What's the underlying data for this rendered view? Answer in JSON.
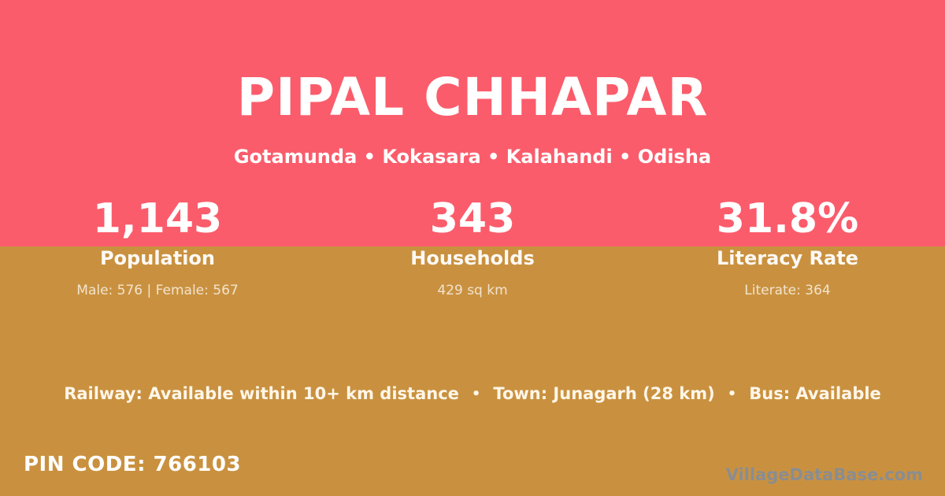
{
  "header": {
    "village_name": "PIPAL CHHAPAR",
    "location_line": "Gotamunda • Kokasara • Kalahandi • Odisha"
  },
  "stats": [
    {
      "value": "1,143",
      "label": "Population",
      "detail": "Male: 576 | Female: 567"
    },
    {
      "value": "343",
      "label": "Households",
      "detail": "429 sq km"
    },
    {
      "value": "31.8%",
      "label": "Literacy Rate",
      "detail": "Literate: 364"
    }
  ],
  "transport": {
    "railway": "Railway: Available within 10+ km distance",
    "town": "Town: Junagarh (28 km)",
    "bus": "Bus: Available",
    "separator": "•"
  },
  "footer": {
    "pin_code": "PIN CODE: 766103",
    "watermark": "VillageDataBase.com"
  },
  "colors": {
    "top_background": "#FB5C6B",
    "bottom_background": "#C9913F",
    "heading_text": "#FFFFFF",
    "muted_text": "rgba(255,255,255,0.75)",
    "transport_text": "#FFF6E9",
    "watermark": "#8A8D92"
  }
}
